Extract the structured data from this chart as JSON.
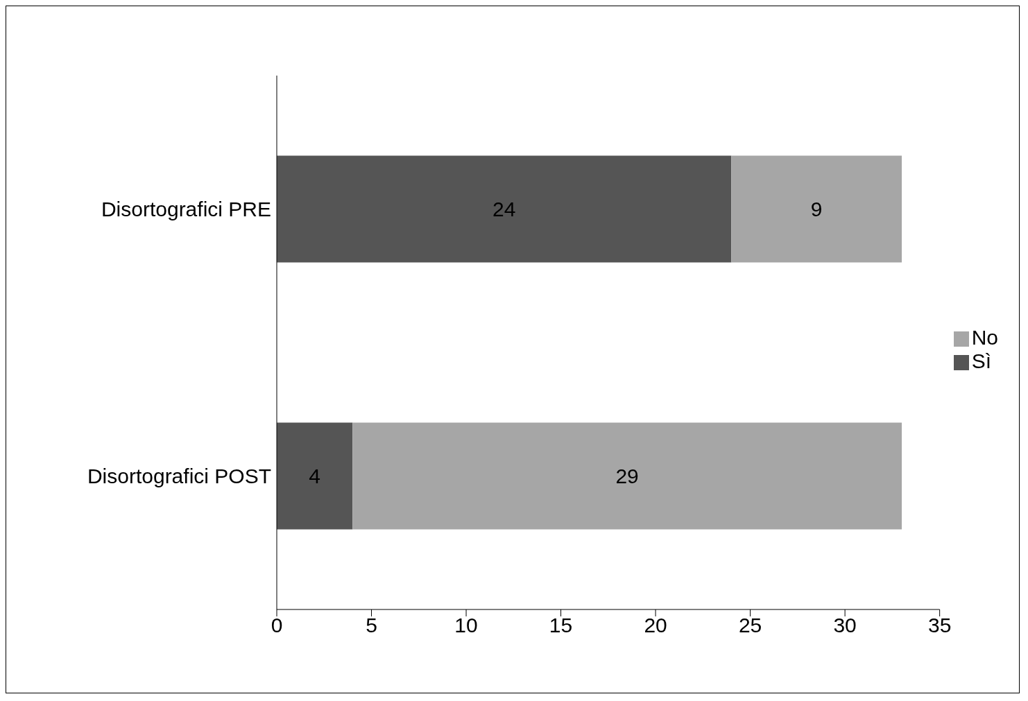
{
  "chart_data": {
    "type": "bar",
    "orientation": "horizontal",
    "stacked": true,
    "categories": [
      "Disortografici PRE",
      "Disortografici POST"
    ],
    "series": [
      {
        "name": "Sì",
        "color": "#555555",
        "values": [
          24,
          4
        ]
      },
      {
        "name": "No",
        "color": "#a6a6a6",
        "values": [
          9,
          29
        ]
      }
    ],
    "xlim": [
      0,
      35
    ],
    "xticks": [
      0,
      5,
      10,
      15,
      20,
      25,
      30,
      35
    ],
    "data_labels": true,
    "legend": "right",
    "grid": false
  }
}
